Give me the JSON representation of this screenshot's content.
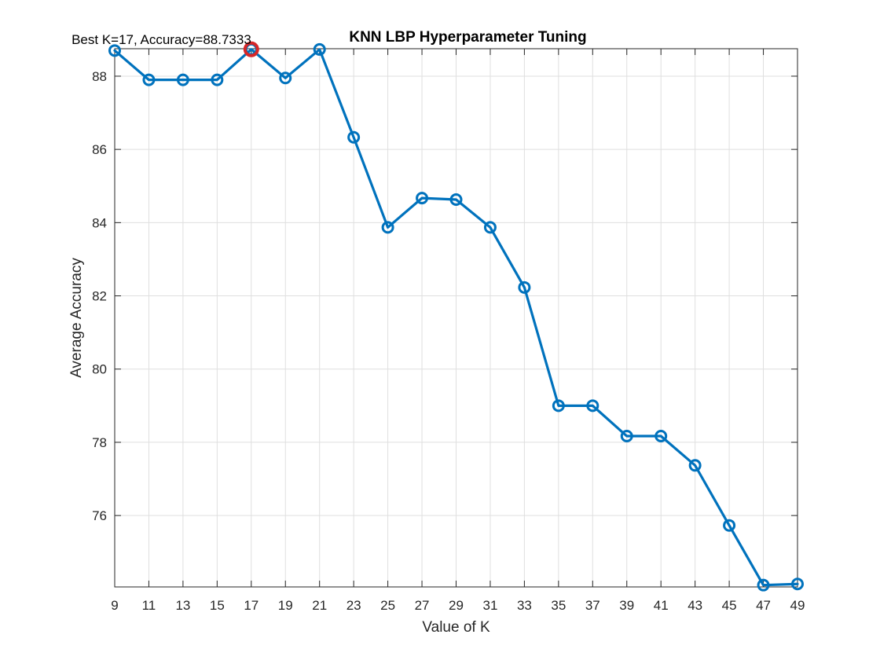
{
  "chart_data": {
    "type": "line",
    "title": "KNN LBP Hyperparameter Tuning",
    "xlabel": "Value of K",
    "ylabel": "Average Accuracy",
    "x": [
      9,
      11,
      13,
      15,
      17,
      19,
      21,
      23,
      25,
      27,
      29,
      31,
      33,
      35,
      37,
      39,
      41,
      43,
      45,
      47,
      49
    ],
    "series": [
      {
        "color": "#0072BD",
        "values": [
          88.7,
          87.9,
          87.9,
          87.9,
          88.7333,
          87.95,
          88.73,
          86.33,
          83.87,
          84.67,
          84.63,
          83.87,
          82.23,
          79.0,
          79.0,
          78.17,
          78.17,
          77.37,
          75.73,
          74.1,
          74.13
        ]
      }
    ],
    "xlim": [
      9,
      49
    ],
    "ylim": [
      74.05,
      88.75
    ],
    "xticks": [
      "9",
      "11",
      "13",
      "15",
      "17",
      "19",
      "21",
      "23",
      "25",
      "27",
      "29",
      "31",
      "33",
      "35",
      "37",
      "39",
      "41",
      "43",
      "45",
      "47",
      "49"
    ],
    "yticks": [
      "76",
      "78",
      "80",
      "82",
      "84",
      "86",
      "88"
    ],
    "grid": true,
    "highlight": {
      "x": 17,
      "y": 88.7333,
      "color": "#D62728"
    },
    "annotation": "Best K=17, Accuracy=88.7333"
  }
}
